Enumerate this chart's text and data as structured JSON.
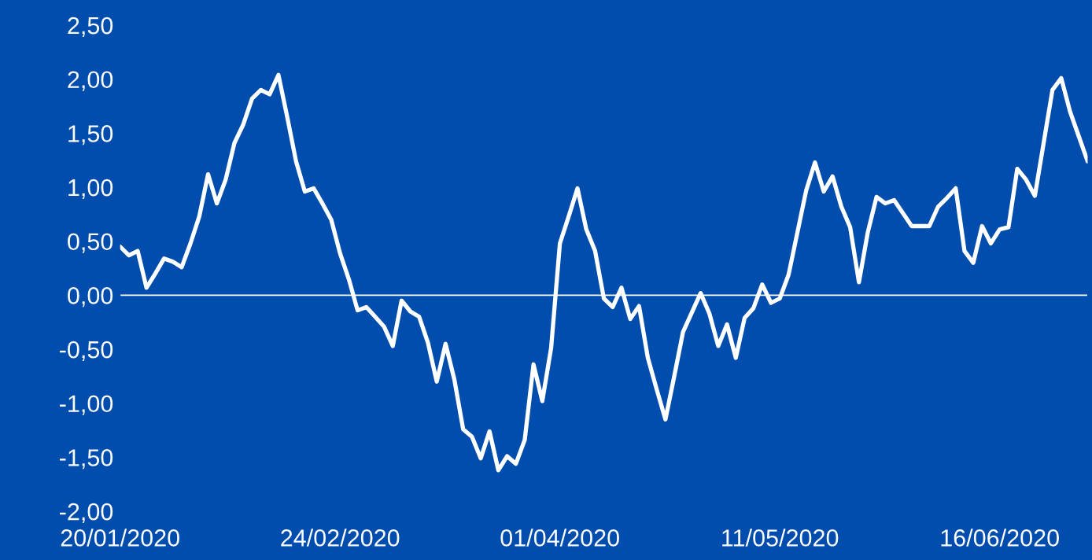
{
  "chart_data": {
    "type": "line",
    "categories": [
      "20/01/2020",
      null,
      null,
      null,
      null,
      null,
      null,
      null,
      null,
      null,
      null,
      null,
      null,
      null,
      null,
      null,
      null,
      null,
      null,
      null,
      null,
      null,
      null,
      null,
      null,
      "24/02/2020",
      null,
      null,
      null,
      null,
      null,
      null,
      null,
      null,
      null,
      null,
      null,
      null,
      null,
      null,
      null,
      null,
      null,
      null,
      null,
      null,
      null,
      null,
      null,
      null,
      "01/04/2020",
      null,
      null,
      null,
      null,
      null,
      null,
      null,
      null,
      null,
      null,
      null,
      null,
      null,
      null,
      null,
      null,
      null,
      null,
      null,
      null,
      null,
      null,
      null,
      null,
      "11/05/2020",
      null,
      null,
      null,
      null,
      null,
      null,
      null,
      null,
      null,
      null,
      null,
      null,
      null,
      null,
      null,
      null,
      null,
      null,
      null,
      null,
      null,
      null,
      null,
      null,
      "16/06/2020",
      null,
      null,
      null,
      null,
      null,
      null,
      null,
      null,
      null,
      null
    ],
    "series": [
      {
        "color": "#ffffff",
        "values": [
          0.45,
          0.37,
          0.41,
          0.07,
          0.2,
          0.34,
          0.31,
          0.26,
          0.48,
          0.73,
          1.12,
          0.85,
          1.07,
          1.41,
          1.58,
          1.82,
          1.9,
          1.86,
          2.04,
          1.65,
          1.24,
          0.96,
          0.99,
          0.85,
          0.7,
          0.39,
          0.15,
          -0.14,
          -0.11,
          -0.2,
          -0.29,
          -0.47,
          -0.05,
          -0.15,
          -0.2,
          -0.44,
          -0.8,
          -0.45,
          -0.78,
          -1.24,
          -1.31,
          -1.51,
          -1.26,
          -1.62,
          -1.49,
          -1.56,
          -1.34,
          -0.64,
          -0.98,
          -0.49,
          0.48,
          0.73,
          0.99,
          0.61,
          0.41,
          -0.03,
          -0.11,
          0.07,
          -0.22,
          -0.1,
          -0.58,
          -0.87,
          -1.15,
          -0.75,
          -0.34,
          -0.16,
          0.02,
          -0.17,
          -0.47,
          -0.27,
          -0.58,
          -0.21,
          -0.12,
          0.1,
          -0.07,
          -0.03,
          0.19,
          0.58,
          0.97,
          1.23,
          0.96,
          1.1,
          0.82,
          0.63,
          0.12,
          0.58,
          0.91,
          0.85,
          0.88,
          0.76,
          0.64,
          0.64,
          0.64,
          0.82,
          0.9,
          0.99,
          0.41,
          0.3,
          0.64,
          0.48,
          0.61,
          0.63,
          1.17,
          1.07,
          0.92,
          1.41,
          1.9,
          2.01,
          1.7,
          1.47,
          1.24
        ]
      }
    ],
    "ylim": [
      -2.0,
      2.5
    ],
    "yticks": [
      {
        "value": -2.0,
        "label": "-2,00"
      },
      {
        "value": -1.5,
        "label": "-1,50"
      },
      {
        "value": -1.0,
        "label": "-1,00"
      },
      {
        "value": -0.5,
        "label": "-0,50"
      },
      {
        "value": 0,
        "label": "0,00"
      },
      {
        "value": 0.5,
        "label": "0,50"
      },
      {
        "value": 1.0,
        "label": "1,00"
      },
      {
        "value": 1.5,
        "label": "1,50"
      },
      {
        "value": 2.0,
        "label": "2,00"
      },
      {
        "value": 2.5,
        "label": "2,50"
      }
    ],
    "ref_lines": [
      {
        "axis": "y",
        "value": 0,
        "color": "#ffffff"
      }
    ],
    "legend": false,
    "marker": "none",
    "line_style": "solid"
  }
}
